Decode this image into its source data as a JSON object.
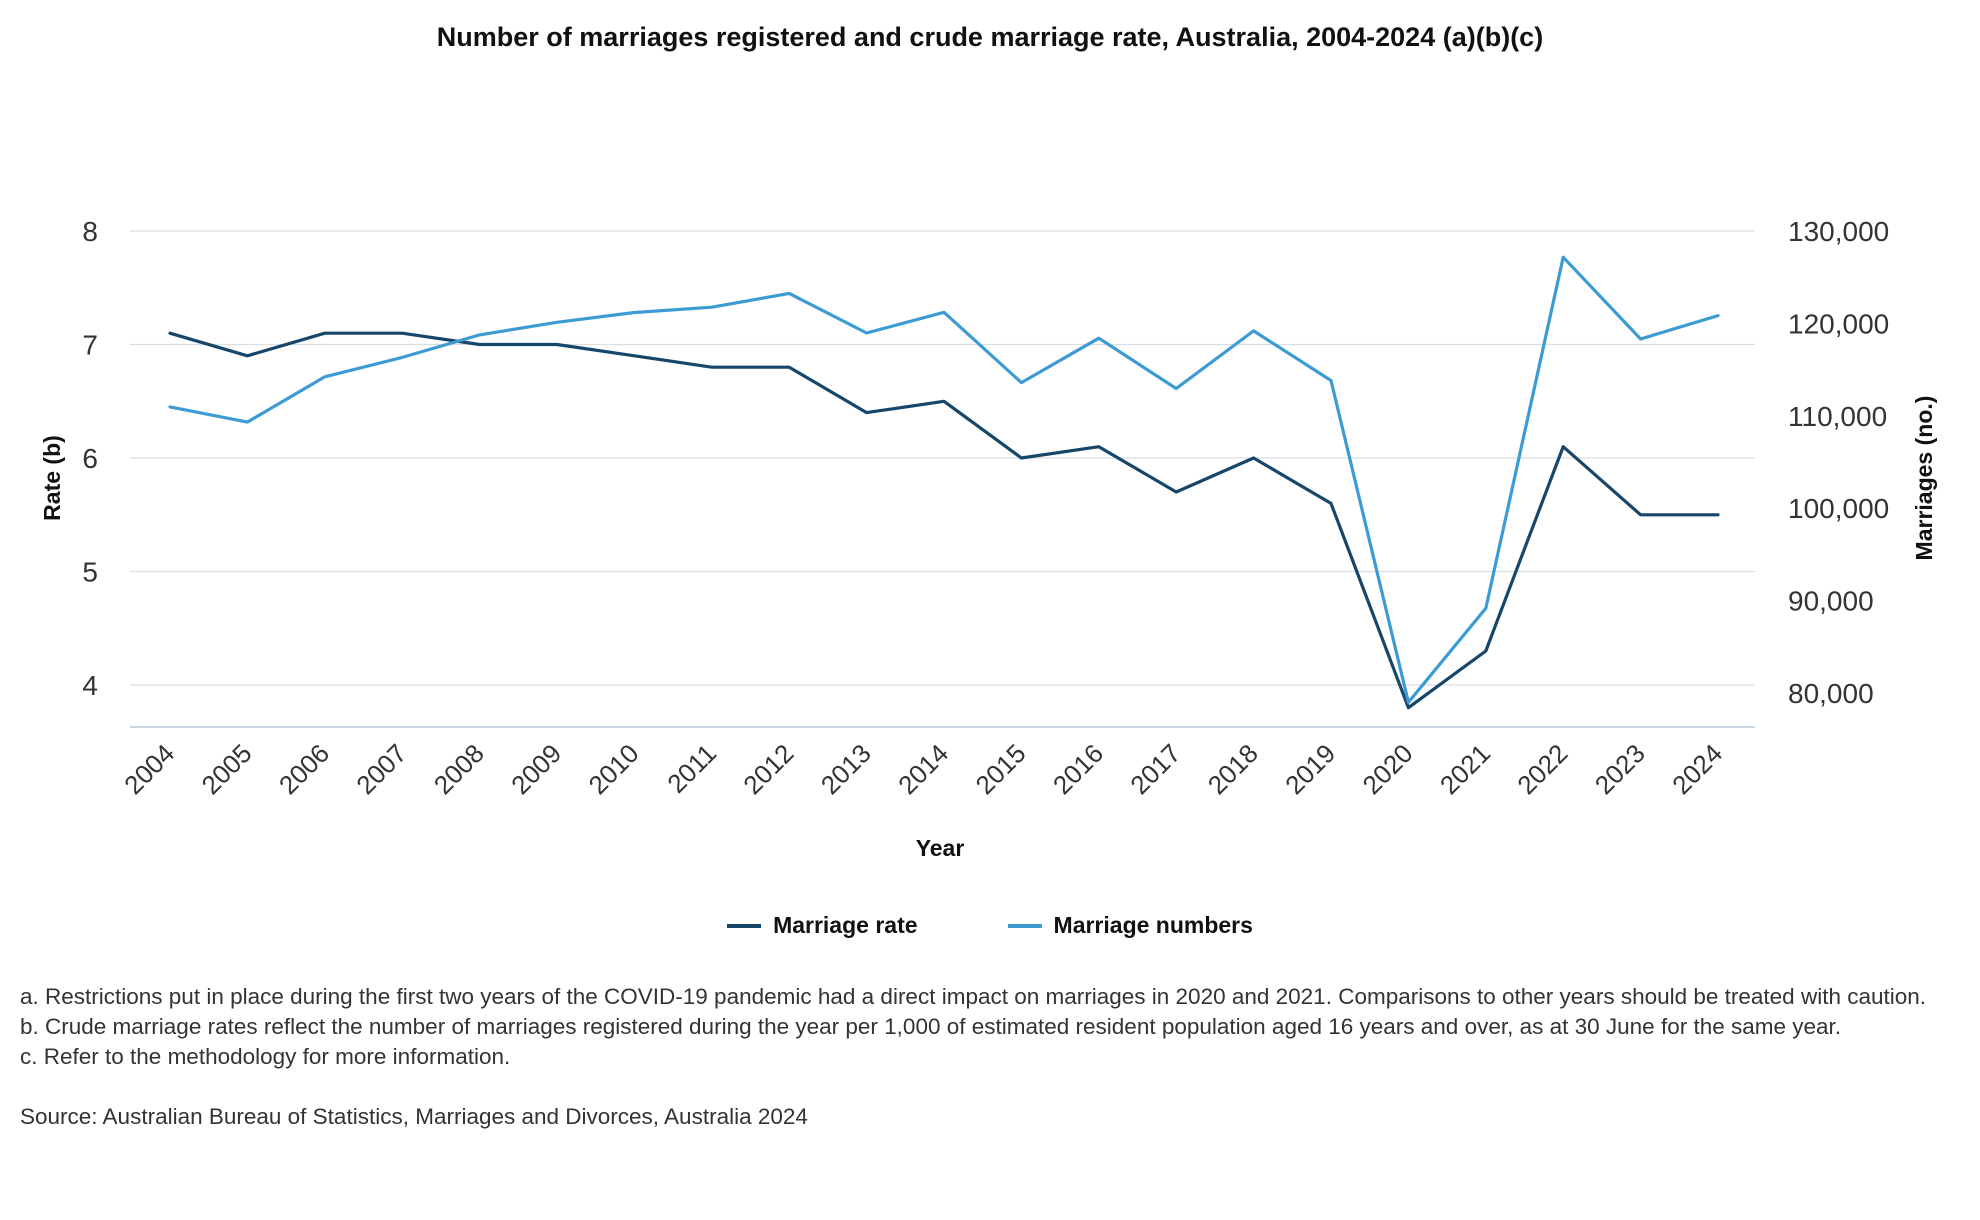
{
  "title": "Number of marriages registered and crude marriage rate, Australia, 2004-2024 (a)(b)(c)",
  "colors": {
    "rate": "#17466b",
    "numbers": "#3d9bd4",
    "grid": "#d9dee3",
    "axis": "#b8cad8"
  },
  "chart_data": {
    "type": "line",
    "categories": [
      "2004",
      "2005",
      "2006",
      "2007",
      "2008",
      "2009",
      "2010",
      "2011",
      "2012",
      "2013",
      "2014",
      "2015",
      "2016",
      "2017",
      "2018",
      "2019",
      "2020",
      "2021",
      "2022",
      "2023",
      "2024"
    ],
    "series": [
      {
        "name": "Marriage rate",
        "axis": "left",
        "values": [
          7.1,
          6.9,
          7.1,
          7.1,
          7.0,
          7.0,
          6.9,
          6.8,
          6.8,
          6.4,
          6.5,
          6.0,
          6.1,
          5.7,
          6.0,
          5.6,
          3.8,
          4.3,
          6.1,
          5.5,
          5.5
        ]
      },
      {
        "name": "Marriage numbers",
        "axis": "right",
        "values": [
          110958,
          109323,
          114222,
          116322,
          118756,
          120118,
          121176,
          121752,
          123244,
          118962,
          121197,
          113595,
          118401,
          112954,
          119188,
          113815,
          78989,
          89167,
          127161,
          118313,
          120848
        ]
      }
    ],
    "xlabel": "Year",
    "ylabel_left": "Rate (b)",
    "ylabel_right": "Marriages (no.)",
    "ylim_left": [
      3.6,
      8
    ],
    "ylim_right": [
      76500,
      130000
    ],
    "yticks_left": [
      "8",
      "7",
      "6",
      "5",
      "4"
    ],
    "yticks_right": [
      "130,000",
      "120,000",
      "110,000",
      "100,000",
      "90,000",
      "80,000"
    ],
    "grid": true,
    "legend_position": "bottom-center"
  },
  "legend": {
    "rate": "Marriage rate",
    "numbers": "Marriage numbers"
  },
  "notes": {
    "a": "a. Restrictions put in place during the first two years of the COVID-19 pandemic had a direct impact on marriages in 2020 and 2021. Comparisons to other years should be treated with caution.",
    "b": "b. Crude marriage rates reflect the number of marriages registered during the year per 1,000 of estimated resident population aged 16 years and over, as at 30 June for the same year.",
    "c": "c. Refer to the methodology for more information.",
    "source": "Source: Australian Bureau of Statistics, Marriages and Divorces, Australia 2024"
  }
}
